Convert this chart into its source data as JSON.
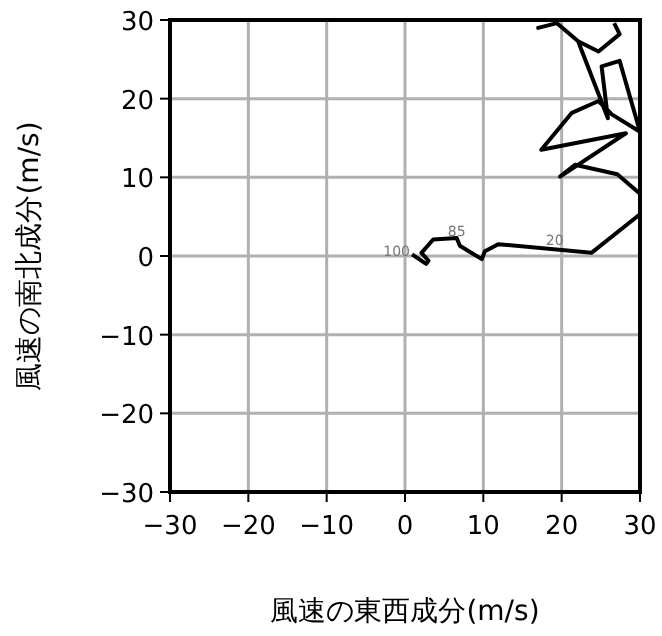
{
  "chart_data": {
    "type": "line",
    "xlabel": "風速の東西成分(m/s)",
    "ylabel": "風速の南北成分(m/s)",
    "xlim": [
      -30,
      30
    ],
    "ylim": [
      -30,
      30
    ],
    "xticks": [
      -30,
      -20,
      -10,
      0,
      10,
      20,
      30
    ],
    "yticks": [
      -30,
      -20,
      -10,
      0,
      10,
      20,
      30
    ],
    "grid": true,
    "series": [
      {
        "color": "#000000",
        "x": [
          0.9,
          2.7,
          3.0,
          2.1,
          3.6,
          6.6,
          7.0,
          9.8,
          10.2,
          11.9,
          23.8,
          30,
          30,
          27.1,
          21.7,
          19.8,
          28.2,
          17.4,
          21.3,
          24.7,
          26.4,
          30,
          27.4,
          25.1,
          25.9,
          22.1,
          19.4,
          17.0,
          19.4,
          22.1,
          24.7,
          27.4,
          26.7
        ],
        "values": [
          0.2,
          -1.0,
          -0.6,
          0.4,
          2.1,
          2.3,
          1.3,
          -0.4,
          0.6,
          1.5,
          0.4,
          5.3,
          7.9,
          10.4,
          11.6,
          10.1,
          15.6,
          13.5,
          18.2,
          19.7,
          18.0,
          15.8,
          24.8,
          24.1,
          17.5,
          27.3,
          29.6,
          29.0,
          29.6,
          27.3,
          26.0,
          28.2,
          29.6
        ]
      }
    ],
    "annotations": [
      {
        "text": "100",
        "x": 0.9,
        "y": 0.2
      },
      {
        "text": "85",
        "x": 8.0,
        "y": 2.8
      },
      {
        "text": "20",
        "x": 20.5,
        "y": 1.6
      }
    ]
  }
}
